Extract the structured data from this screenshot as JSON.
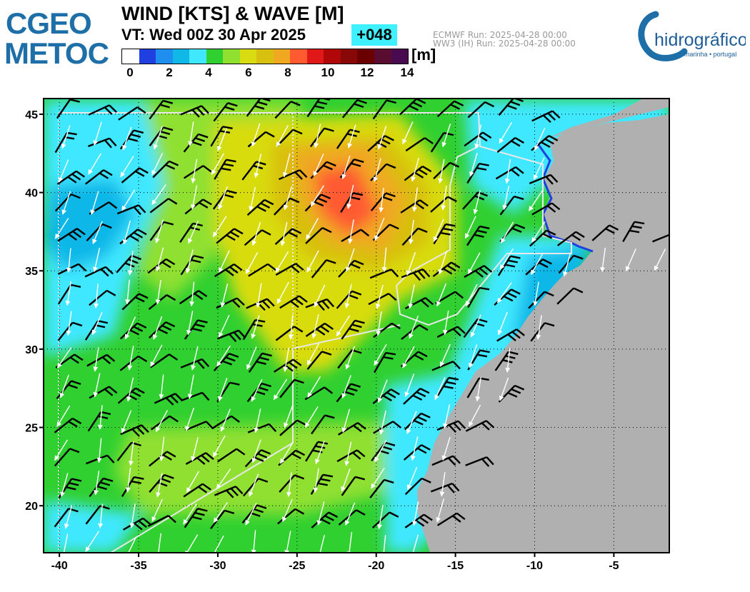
{
  "header": {
    "title": "WIND [KTS] & WAVE [M]",
    "valid_time": "VT: Wed 00Z 30 Apr 2025",
    "forecast_step": "+048",
    "run_ecmwf": "ECMWF    Run: 2025-04-28 00:00",
    "run_ww3": "WW3 (IH) Run: 2025-04-28 00:00"
  },
  "logos": {
    "left_line1": "CGEO",
    "left_line2": "METOC",
    "right_main": "hidrográfico",
    "right_sub": "marinha • portugal"
  },
  "colorbar": {
    "unit": "[m]",
    "ticks": [
      "0",
      "2",
      "4",
      "6",
      "8",
      "10",
      "12",
      "14"
    ],
    "colors": [
      "#ffffff",
      "#1f3fe0",
      "#1f8fef",
      "#10b8e8",
      "#40e8ff",
      "#30d030",
      "#90e030",
      "#d8dc10",
      "#d8c010",
      "#f0a820",
      "#ff5a30",
      "#e01818",
      "#b00808",
      "#880808",
      "#6a0000",
      "#5a0c30",
      "#4a0a50"
    ]
  },
  "map": {
    "lon_range": [
      -41,
      -1.5
    ],
    "lat_range": [
      17,
      46
    ],
    "lon_ticks": [
      "-40",
      "-35",
      "-30",
      "-25",
      "-20",
      "-15",
      "-10",
      "-5"
    ],
    "lat_ticks": [
      "45",
      "40",
      "35",
      "30",
      "25",
      "20"
    ],
    "land_color": "#b0b0b0",
    "grid": "dotted"
  }
}
